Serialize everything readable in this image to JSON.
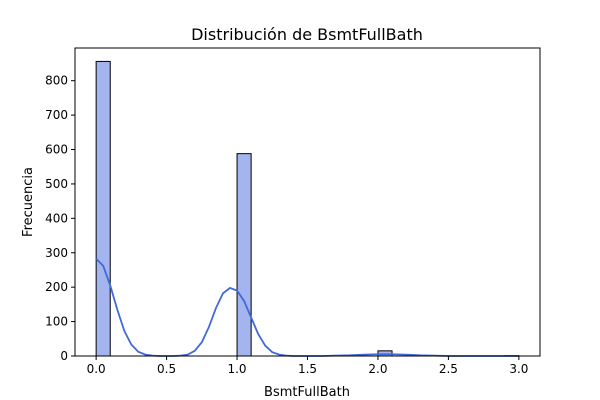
{
  "chart_data": {
    "type": "bar",
    "title": "Distribución de BsmtFullBath",
    "xlabel": "BsmtFullBath",
    "ylabel": "Frecuencia",
    "xlim": [
      -0.15,
      3.15
    ],
    "ylim": [
      0,
      895
    ],
    "xticks": [
      "0.0",
      "0.5",
      "1.0",
      "1.5",
      "2.0",
      "2.5",
      "3.0"
    ],
    "yticks": [
      "0",
      "100",
      "200",
      "300",
      "400",
      "500",
      "600",
      "700",
      "800"
    ],
    "bins": [
      {
        "x0": 0.0,
        "x1": 0.1,
        "count": 856
      },
      {
        "x0": 1.0,
        "x1": 1.1,
        "count": 588
      },
      {
        "x0": 2.0,
        "x1": 2.1,
        "count": 15
      },
      {
        "x0": 2.9,
        "x1": 3.0,
        "count": 1
      }
    ],
    "kde": {
      "x": [
        0.0,
        0.05,
        0.1,
        0.15,
        0.2,
        0.25,
        0.3,
        0.35,
        0.4,
        0.45,
        0.5,
        0.55,
        0.6,
        0.65,
        0.7,
        0.75,
        0.8,
        0.85,
        0.9,
        0.95,
        1.0,
        1.05,
        1.1,
        1.15,
        1.2,
        1.25,
        1.3,
        1.35,
        1.4,
        1.45,
        1.5,
        1.6,
        1.7,
        1.8,
        1.9,
        2.0,
        2.1,
        2.2,
        2.3,
        2.4,
        2.5,
        2.7,
        2.9,
        3.0
      ],
      "y": [
        283,
        262,
        205,
        135,
        73,
        33,
        12,
        4,
        1,
        0,
        0,
        0,
        1,
        4,
        15,
        40,
        84,
        139,
        182,
        198,
        190,
        160,
        112,
        64,
        30,
        11,
        4,
        1,
        0,
        0,
        0,
        0,
        1,
        2,
        4,
        5,
        5,
        4,
        2,
        1,
        0,
        0,
        0,
        0
      ]
    },
    "bar_color": "#a3b4ee",
    "bar_edge": "#000000",
    "line_color": "#4169d8",
    "grid": false,
    "legend": "none"
  }
}
